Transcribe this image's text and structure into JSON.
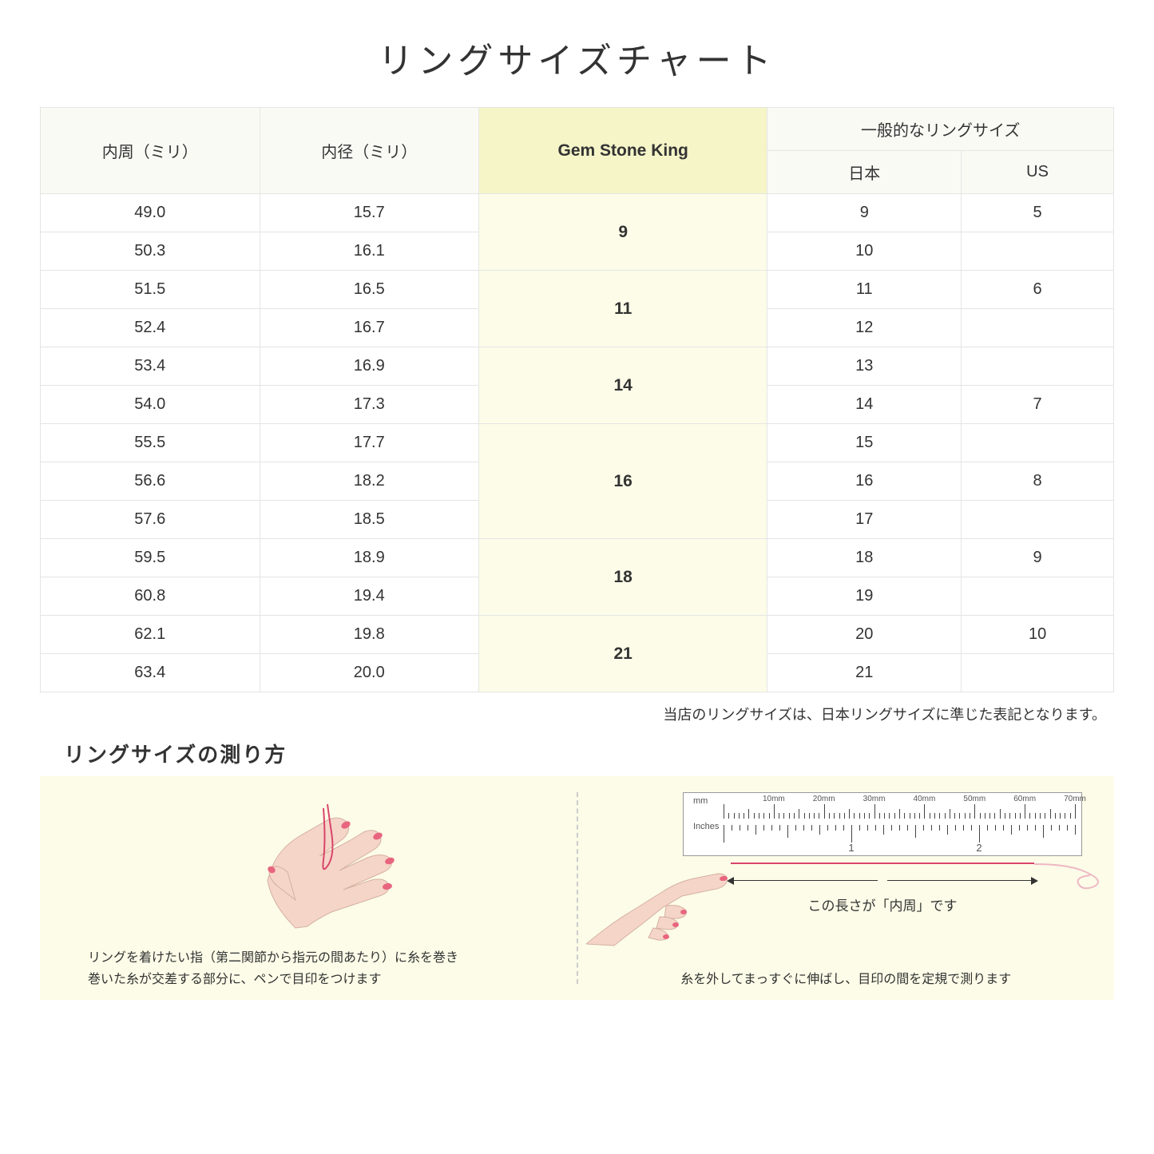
{
  "title": "リングサイズチャート",
  "headers": {
    "circumference": "内周（ミリ）",
    "diameter": "内径（ミリ）",
    "gsk": "Gem Stone King",
    "common": "一般的なリングサイズ",
    "japan": "日本",
    "us": "US"
  },
  "groups": [
    {
      "gsk": "9",
      "rows": [
        {
          "c": "49.0",
          "d": "15.7",
          "jp": "9",
          "us": "5"
        },
        {
          "c": "50.3",
          "d": "16.1",
          "jp": "10",
          "us": ""
        }
      ]
    },
    {
      "gsk": "11",
      "rows": [
        {
          "c": "51.5",
          "d": "16.5",
          "jp": "11",
          "us": "6"
        },
        {
          "c": "52.4",
          "d": "16.7",
          "jp": "12",
          "us": ""
        }
      ]
    },
    {
      "gsk": "14",
      "rows": [
        {
          "c": "53.4",
          "d": "16.9",
          "jp": "13",
          "us": ""
        },
        {
          "c": "54.0",
          "d": "17.3",
          "jp": "14",
          "us": "7"
        }
      ]
    },
    {
      "gsk": "16",
      "rows": [
        {
          "c": "55.5",
          "d": "17.7",
          "jp": "15",
          "us": ""
        },
        {
          "c": "56.6",
          "d": "18.2",
          "jp": "16",
          "us": "8"
        },
        {
          "c": "57.6",
          "d": "18.5",
          "jp": "17",
          "us": ""
        }
      ]
    },
    {
      "gsk": "18",
      "rows": [
        {
          "c": "59.5",
          "d": "18.9",
          "jp": "18",
          "us": "9"
        },
        {
          "c": "60.8",
          "d": "19.4",
          "jp": "19",
          "us": ""
        }
      ]
    },
    {
      "gsk": "21",
      "rows": [
        {
          "c": "62.1",
          "d": "19.8",
          "jp": "20",
          "us": "10"
        },
        {
          "c": "63.4",
          "d": "20.0",
          "jp": "21",
          "us": ""
        }
      ]
    }
  ],
  "note": "当店のリングサイズは、日本リングサイズに準じた表記となります。",
  "howto": {
    "title": "リングサイズの測り方",
    "left_caption": "リングを着けたい指（第二関節から指元の間あたり）に糸を巻き\n巻いた糸が交差する部分に、ペンで目印をつけます",
    "right_caption": "糸を外してまっすぐに伸ばし、目印の間を定規で測ります",
    "length_label": "この長さが「内周」です",
    "ruler_mm": "mm",
    "ruler_in": "Inches",
    "mm_ticks": [
      "10mm",
      "20mm",
      "30mm",
      "40mm",
      "50mm",
      "60mm",
      "70mm"
    ],
    "in_ticks": [
      "1",
      "2"
    ]
  },
  "colors": {
    "header_bg": "#fafaf5",
    "gsk_header_bg": "#f5f5c8",
    "gsk_cell_bg": "#fcfce8",
    "howto_bg": "#fcfce8",
    "skin": "#f5d5c8",
    "nail": "#e8657f",
    "thread": "#d9456b"
  }
}
